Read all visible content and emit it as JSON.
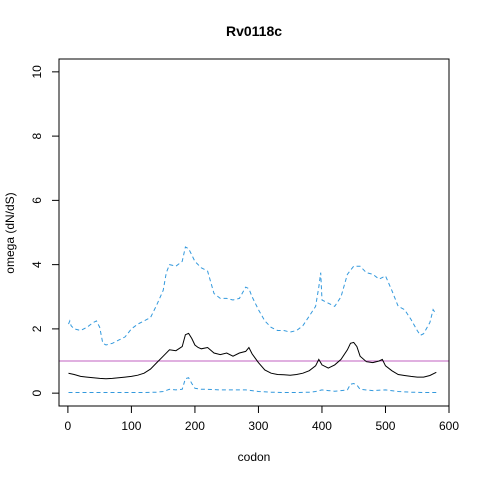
{
  "chart_data": {
    "type": "line",
    "title": "Rv0118c",
    "xlabel": "codon",
    "ylabel": "omega (dN/dS)",
    "xlim": [
      -14,
      600
    ],
    "ylim": [
      -0.4,
      10.4
    ],
    "xticks": [
      0,
      100,
      200,
      300,
      400,
      500,
      600
    ],
    "yticks": [
      0,
      2,
      4,
      6,
      8,
      10
    ],
    "grid": false,
    "reference_line": {
      "y": 1,
      "color": "#c060c0"
    },
    "series": [
      {
        "color": "#000000",
        "dash": "solid",
        "x": [
          1,
          10,
          20,
          30,
          40,
          50,
          60,
          70,
          80,
          90,
          100,
          110,
          120,
          130,
          140,
          150,
          160,
          170,
          180,
          185,
          190,
          195,
          200,
          205,
          210,
          220,
          230,
          240,
          250,
          260,
          270,
          280,
          285,
          290,
          300,
          310,
          320,
          330,
          340,
          350,
          360,
          370,
          380,
          390,
          395,
          400,
          410,
          420,
          430,
          440,
          445,
          450,
          455,
          460,
          470,
          480,
          490,
          495,
          500,
          510,
          520,
          530,
          540,
          550,
          560,
          570,
          580
        ],
        "y": [
          0.62,
          0.58,
          0.52,
          0.5,
          0.48,
          0.46,
          0.45,
          0.46,
          0.48,
          0.5,
          0.52,
          0.56,
          0.62,
          0.75,
          0.95,
          1.15,
          1.35,
          1.32,
          1.45,
          1.82,
          1.86,
          1.7,
          1.5,
          1.42,
          1.38,
          1.42,
          1.25,
          1.2,
          1.25,
          1.15,
          1.25,
          1.3,
          1.42,
          1.22,
          0.95,
          0.72,
          0.62,
          0.58,
          0.57,
          0.56,
          0.58,
          0.62,
          0.7,
          0.85,
          1.05,
          0.88,
          0.78,
          0.88,
          1.05,
          1.35,
          1.55,
          1.58,
          1.45,
          1.15,
          0.98,
          0.95,
          1.0,
          1.05,
          0.85,
          0.7,
          0.58,
          0.55,
          0.52,
          0.5,
          0.5,
          0.55,
          0.65
        ]
      },
      {
        "color": "#3399dd",
        "dash": "dashed",
        "x": [
          1,
          3,
          5,
          10,
          20,
          30,
          40,
          45,
          50,
          55,
          60,
          70,
          80,
          90,
          100,
          110,
          120,
          130,
          140,
          150,
          155,
          160,
          170,
          180,
          185,
          190,
          195,
          200,
          210,
          220,
          230,
          240,
          250,
          260,
          270,
          280,
          285,
          290,
          300,
          310,
          320,
          330,
          340,
          350,
          360,
          370,
          380,
          390,
          395,
          398,
          400,
          410,
          420,
          430,
          440,
          450,
          460,
          470,
          480,
          490,
          500,
          510,
          520,
          530,
          540,
          550,
          555,
          560,
          570,
          575,
          580
        ],
        "y": [
          2.15,
          2.25,
          2.1,
          2.0,
          1.95,
          2.05,
          2.2,
          2.25,
          2.05,
          1.55,
          1.5,
          1.55,
          1.65,
          1.75,
          2.0,
          2.15,
          2.25,
          2.35,
          2.75,
          3.2,
          3.75,
          4.0,
          3.95,
          4.1,
          4.55,
          4.5,
          4.3,
          4.1,
          3.9,
          3.8,
          3.1,
          2.95,
          2.95,
          2.9,
          2.95,
          3.3,
          3.25,
          3.0,
          2.6,
          2.25,
          2.05,
          1.95,
          1.95,
          1.9,
          1.95,
          2.1,
          2.4,
          2.7,
          3.3,
          3.75,
          2.9,
          2.8,
          2.7,
          3.0,
          3.7,
          3.95,
          3.95,
          3.75,
          3.7,
          3.55,
          3.65,
          3.2,
          2.7,
          2.6,
          2.3,
          1.95,
          1.8,
          1.85,
          2.2,
          2.6,
          2.45
        ]
      },
      {
        "color": "#3399dd",
        "dash": "dashed",
        "x": [
          1,
          20,
          40,
          60,
          80,
          100,
          120,
          140,
          150,
          160,
          170,
          180,
          185,
          190,
          195,
          200,
          210,
          220,
          240,
          260,
          280,
          300,
          320,
          340,
          360,
          380,
          390,
          400,
          410,
          420,
          430,
          440,
          445,
          450,
          455,
          460,
          480,
          500,
          520,
          540,
          560,
          580
        ],
        "y": [
          0.02,
          0.02,
          0.02,
          0.02,
          0.02,
          0.02,
          0.02,
          0.03,
          0.05,
          0.12,
          0.1,
          0.12,
          0.45,
          0.48,
          0.3,
          0.15,
          0.12,
          0.12,
          0.1,
          0.1,
          0.1,
          0.05,
          0.03,
          0.02,
          0.02,
          0.03,
          0.05,
          0.1,
          0.08,
          0.06,
          0.08,
          0.1,
          0.28,
          0.3,
          0.25,
          0.12,
          0.08,
          0.1,
          0.05,
          0.03,
          0.02,
          0.02
        ]
      }
    ]
  }
}
